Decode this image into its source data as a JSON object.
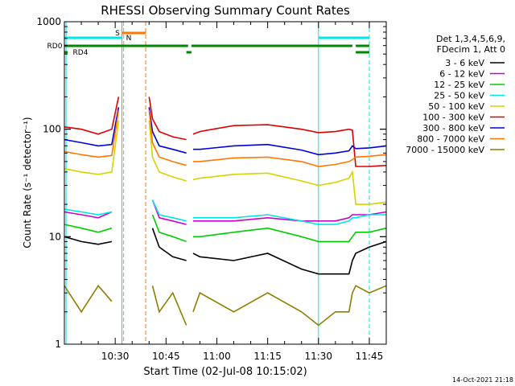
{
  "chart_data": {
    "type": "line",
    "title": "RHESSI Observing Summary Count Rates",
    "xlabel": "Start Time (02-Jul-08 10:15:02)",
    "ylabel": "Count Rate (s⁻¹ detector⁻¹)",
    "x_unit": "minutes after 10:15:02",
    "xlim": [
      0,
      95
    ],
    "ylim": [
      1,
      1000
    ],
    "y_scale": "log",
    "x_tick_labels": [
      {
        "x": 15,
        "label": "10:30"
      },
      {
        "x": 30,
        "label": "10:45"
      },
      {
        "x": 45,
        "label": "11:00"
      },
      {
        "x": 60,
        "label": "11:15"
      },
      {
        "x": 75,
        "label": "11:30"
      },
      {
        "x": 90,
        "label": "11:45"
      }
    ],
    "y_tick_labels": [
      {
        "y": 1,
        "label": "1"
      },
      {
        "y": 10,
        "label": "10"
      },
      {
        "y": 100,
        "label": "100"
      },
      {
        "y": 1000,
        "label": "1000"
      }
    ],
    "grid": false,
    "legend_position": "right",
    "legend_header": [
      "Det 1,3,4,5,6,9,",
      "FDecim 1, Att 0"
    ],
    "timestamp": "14-Oct-2021 21:18",
    "x": [
      0,
      5,
      10,
      14,
      16,
      17,
      18,
      25,
      26,
      28,
      32,
      36,
      37,
      38,
      40,
      50,
      60,
      70,
      75,
      80,
      84,
      85,
      86,
      90,
      95
    ],
    "series": [
      {
        "name": "3 - 6 keV",
        "color": "#000000",
        "values": [
          10,
          9,
          8.5,
          9,
          null,
          null,
          null,
          null,
          12,
          8,
          6.5,
          6,
          null,
          7,
          6.5,
          6,
          7,
          5,
          4.5,
          4.5,
          4.5,
          6,
          7,
          8,
          9
        ]
      },
      {
        "name": "6 - 12 keV",
        "color": "#cc00cc",
        "values": [
          17,
          16,
          15,
          17,
          null,
          null,
          null,
          null,
          22,
          15,
          14,
          13,
          null,
          14,
          14,
          14,
          15,
          14,
          14,
          14,
          15,
          16,
          16,
          16,
          17
        ]
      },
      {
        "name": "12 - 25 keV",
        "color": "#00cc00",
        "values": [
          13,
          12,
          11,
          12,
          null,
          null,
          null,
          null,
          16,
          11,
          10,
          9,
          null,
          10,
          10,
          11,
          12,
          10,
          9,
          9,
          9,
          10,
          11,
          11,
          12
        ]
      },
      {
        "name": "25 - 50 keV",
        "color": "#00e5e5",
        "values": [
          18,
          17,
          16,
          17,
          null,
          null,
          null,
          null,
          22,
          16,
          15,
          14,
          null,
          15,
          15,
          15,
          16,
          14,
          13,
          13,
          14,
          15,
          15,
          16,
          16
        ]
      },
      {
        "name": "50 - 100 keV",
        "color": "#d4d400",
        "values": [
          43,
          40,
          38,
          40,
          120,
          null,
          null,
          120,
          55,
          40,
          36,
          33,
          null,
          34,
          35,
          38,
          39,
          33,
          30,
          32,
          35,
          40,
          20,
          20,
          21
        ]
      },
      {
        "name": "100 - 300 keV",
        "color": "#dd0000",
        "values": [
          105,
          100,
          90,
          100,
          200,
          null,
          null,
          200,
          125,
          95,
          85,
          80,
          null,
          90,
          95,
          108,
          110,
          100,
          93,
          95,
          100,
          98,
          45,
          45,
          46
        ]
      },
      {
        "name": "300 - 800 keV",
        "color": "#0000dd",
        "values": [
          80,
          75,
          70,
          72,
          160,
          null,
          null,
          160,
          95,
          70,
          65,
          60,
          null,
          65,
          65,
          70,
          72,
          64,
          58,
          60,
          63,
          70,
          66,
          67,
          70
        ]
      },
      {
        "name": "800 - 7000 keV",
        "color": "#ff7700",
        "values": [
          62,
          58,
          55,
          57,
          150,
          null,
          null,
          150,
          75,
          55,
          50,
          46,
          null,
          50,
          50,
          54,
          55,
          50,
          45,
          47,
          50,
          52,
          55,
          56,
          58
        ]
      },
      {
        "name": "7000 - 15000 keV",
        "color": "#8b8000",
        "values": [
          3.5,
          2,
          3.5,
          2.5,
          null,
          null,
          null,
          null,
          3.5,
          2,
          3,
          1.5,
          null,
          2,
          3,
          2,
          3,
          2,
          1.5,
          2,
          2,
          3,
          3.5,
          3,
          3.5
        ]
      }
    ],
    "state_bars": [
      {
        "label": "S",
        "color": "#ff7700",
        "segments": [
          [
            17,
            24
          ]
        ]
      },
      {
        "label": "N",
        "color": "#00e5e5",
        "segments": [
          [
            0,
            17
          ],
          [
            75,
            90
          ]
        ]
      },
      {
        "label": "RD0",
        "color": "#008800",
        "segments": [
          [
            0,
            36.5
          ],
          [
            37.5,
            85
          ],
          [
            86,
            90
          ]
        ]
      },
      {
        "label": "RD4",
        "color": "#008800",
        "segments": [
          [
            0,
            1
          ],
          [
            36,
            37.5
          ],
          [
            86,
            90
          ]
        ]
      }
    ],
    "vertical_markers": [
      {
        "x": 17,
        "color": "#ff7700",
        "style": "solid"
      },
      {
        "x": 24,
        "color": "#ff7700",
        "style": "dashed"
      },
      {
        "x": 0.5,
        "color": "#00e5e5",
        "style": "solid"
      },
      {
        "x": 17.5,
        "color": "#00e5e5",
        "style": "dashed"
      },
      {
        "x": 75,
        "color": "#00e5e5",
        "style": "solid"
      },
      {
        "x": 90,
        "color": "#00e5e5",
        "style": "dashed"
      }
    ]
  }
}
